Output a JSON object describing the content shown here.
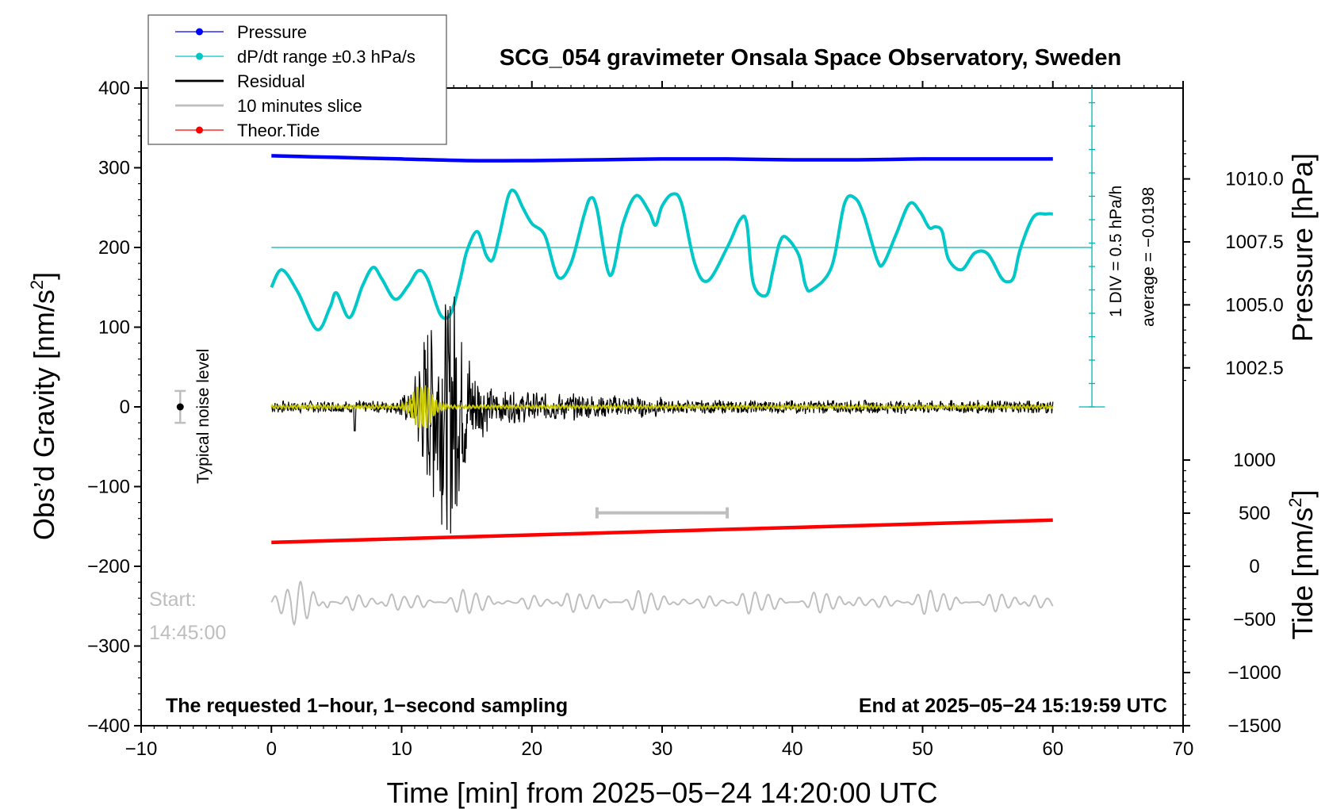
{
  "chart_data": {
    "type": "line",
    "title": "SCG_054 gravimeter Onsala Space Observatory, Sweden",
    "xlabel": "Time [min] from 2025−05−24 14:20:00 UTC",
    "ylabel_left": "Obs’d Gravity [nm/s²]",
    "ylabel_left_main": "Obs’d Gravity [nm/s",
    "ylabel_left_sup": "2",
    "ylabel_left_close": "]",
    "ylabel_right_top": "Pressure [hPa]",
    "ylabel_right_bottom": "Tide [nm/s²]",
    "ylabel_right_bottom_main": "Tide [nm/s",
    "ylabel_right_bottom_sup": "2",
    "ylabel_right_bottom_close": "]",
    "xlim": [
      -10,
      70
    ],
    "ylim": [
      -400,
      400
    ],
    "x_ticks": [
      -10,
      0,
      10,
      20,
      30,
      40,
      50,
      60,
      70
    ],
    "x_tick_labels": [
      "−10",
      "0",
      "10",
      "20",
      "30",
      "40",
      "50",
      "60",
      "70"
    ],
    "y_ticks": [
      400,
      300,
      200,
      100,
      0,
      -100,
      -200,
      -300,
      -400
    ],
    "y_tick_labels": [
      "400",
      "300",
      "200",
      "100",
      "0",
      "−100",
      "−200",
      "−300",
      "−400"
    ],
    "pressure_axis": {
      "ticks": [
        1010.0,
        1007.5,
        1005.0,
        1002.5
      ],
      "tick_labels": [
        "1010.0",
        "1007.5",
        "1005.0",
        "1002.5"
      ],
      "ref_value": 1005.0,
      "ref_gravity": 128,
      "units_per_hpa": 31.6
    },
    "tide_axis": {
      "ticks": [
        1000,
        500,
        0,
        -500,
        -1000,
        -1500
      ],
      "tick_labels": [
        "1000",
        "500",
        "0",
        "−500",
        "−1000",
        "−1500"
      ],
      "ref_value": 0,
      "ref_gravity": -200,
      "units_per_unit": 0.1333
    },
    "legend": {
      "placement": "top-left",
      "entries": [
        {
          "label": "Pressure",
          "color": "#0000ff",
          "marker": true
        },
        {
          "label": "dP/dt range ±0.3 hPa/s",
          "color": "#00c8c8",
          "marker": true
        },
        {
          "label": "Residual",
          "color": "#000000",
          "marker": false
        },
        {
          "label": "10 minutes slice",
          "color": "#bebebe",
          "marker": false
        },
        {
          "label": "Theor.Tide",
          "color": "#ff0000",
          "marker": true
        }
      ]
    },
    "series": [
      {
        "name": "Pressure",
        "color": "#0000ff",
        "axis": "left",
        "x": [
          0,
          5,
          10,
          15,
          20,
          25,
          30,
          35,
          40,
          45,
          50,
          55,
          60
        ],
        "values": [
          315,
          313,
          311,
          309,
          309,
          310,
          311,
          311,
          310,
          310,
          311,
          311,
          311
        ]
      },
      {
        "name": "dP/dt",
        "color": "#00c8c8",
        "axis": "left",
        "x": [
          0,
          0.8,
          2,
          3.5,
          4.5,
          5,
          6,
          7,
          7.8,
          8.5,
          9.5,
          10.5,
          11.3,
          12,
          13,
          13.8,
          14.5,
          15,
          15.8,
          16.5,
          17,
          17.5,
          18.2,
          18.7,
          19.3,
          20,
          21,
          22,
          23,
          24,
          24.5,
          25,
          26,
          27,
          28,
          29,
          29.5,
          30,
          30.8,
          31.5,
          32.5,
          33.5,
          35,
          36,
          36.5,
          37,
          38,
          38.5,
          39,
          39.5,
          40.5,
          41,
          41.5,
          43,
          44,
          44.8,
          45.5,
          46.5,
          47,
          48,
          49,
          49.8,
          50.5,
          51,
          51.5,
          52,
          53,
          54,
          55,
          56,
          56.5,
          57,
          57.5,
          58.5,
          59.5,
          60
        ],
        "values": [
          150,
          172,
          145,
          97,
          125,
          143,
          112,
          152,
          175,
          160,
          135,
          152,
          171,
          160,
          115,
          118,
          160,
          195,
          220,
          190,
          185,
          215,
          265,
          270,
          250,
          230,
          215,
          163,
          180,
          240,
          262,
          248,
          165,
          230,
          265,
          245,
          228,
          252,
          267,
          255,
          180,
          158,
          200,
          235,
          230,
          155,
          140,
          170,
          205,
          213,
          190,
          153,
          147,
          175,
          255,
          262,
          240,
          185,
          180,
          218,
          255,
          245,
          225,
          226,
          220,
          185,
          172,
          193,
          192,
          163,
          157,
          163,
          198,
          238,
          242,
          242
        ]
      },
      {
        "name": "dP/dt reference average",
        "color": "#00c8c8",
        "axis": "left",
        "x": [
          0,
          63
        ],
        "values": [
          200,
          200
        ]
      },
      {
        "name": "Theor.Tide",
        "color": "#ff0000",
        "axis": "left",
        "x": [
          0,
          60
        ],
        "values": [
          -170,
          -142
        ]
      },
      {
        "name": "Residual",
        "color": "#000000",
        "axis": "left",
        "x_range": [
          0,
          60
        ],
        "baseline": 0,
        "note": "noise ~±8, earthquake burst 11–16 min, peak ≈ ±175"
      },
      {
        "name": "Residual (filtered)",
        "color": "#c8c800",
        "axis": "left",
        "x_range": [
          0,
          60
        ],
        "baseline": 0,
        "note": "burst 10.5–13 min amplitude ≈ ±25"
      },
      {
        "name": "10 minutes slice",
        "color": "#bebebe",
        "axis": "left",
        "x_range": [
          0,
          60
        ],
        "baseline": -245
      }
    ],
    "annotations": {
      "noise_label": "Typical noise level",
      "noise_marker": {
        "x": -7,
        "y": 0,
        "err": 20
      },
      "slice_bar": {
        "x_start": 25,
        "x_end": 35,
        "y": -133
      },
      "start_label": "Start:",
      "start_time": "14:45:00",
      "pressure_scale_div": "1 DIV = 0.5 hPa/h",
      "pressure_average": "average = −0.0198",
      "bottom_left": "The requested 1−hour, 1−second sampling",
      "bottom_right": "End at 2025−05−24 15:19:59 UTC"
    }
  }
}
